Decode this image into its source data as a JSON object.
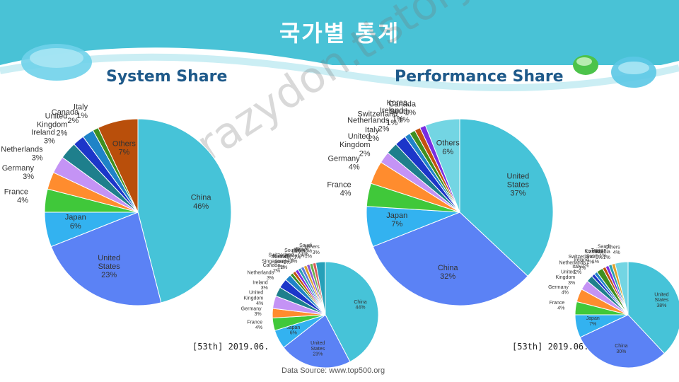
{
  "page": {
    "title": "국가별 통계",
    "source": "Data Source: www.top500.org",
    "watermark": "http://crazydon.tistory.com"
  },
  "chart_data": [
    {
      "id": "system-main",
      "type": "pie",
      "title": "System Share",
      "categories": [
        "China",
        "United States",
        "Japan",
        "France",
        "Germany",
        "Netherlands",
        "Ireland",
        "United Kingdom",
        "Canada",
        "Italy",
        "Others"
      ],
      "values": [
        46,
        23,
        6,
        4,
        3,
        3,
        3,
        2,
        2,
        1,
        7
      ],
      "labels": [
        "46%",
        "23%",
        "6%",
        "4%",
        "3%",
        "3%",
        "3%",
        "2%",
        "2%",
        "1%",
        "7%"
      ],
      "colors": [
        "#46c3d8",
        "#5b82f5",
        "#33b2f0",
        "#40c83a",
        "#ff8c2e",
        "#c493f5",
        "#1e7f8c",
        "#1c36c9",
        "#1f83c7",
        "#3f8f1f",
        "#b94f0b"
      ]
    },
    {
      "id": "performance-main",
      "type": "pie",
      "title": "Performance Share",
      "categories": [
        "United States",
        "China",
        "Japan",
        "France",
        "Germany",
        "United Kingdom",
        "Italy",
        "Netherlands",
        "Switzerland",
        "Ireland",
        "Korea, South",
        "Canada",
        "Others"
      ],
      "values": [
        37,
        32,
        7,
        4,
        4,
        2,
        2,
        2,
        1,
        1,
        1,
        1,
        6
      ],
      "labels": [
        "37%",
        "32%",
        "7%",
        "4%",
        "4%",
        "2%",
        "2%",
        "2%",
        "1%",
        "1%",
        "1%",
        "1%",
        "6%"
      ],
      "colors": [
        "#46c3d8",
        "#5b82f5",
        "#33b2f0",
        "#40c83a",
        "#ff8c2e",
        "#c493f5",
        "#1e7f8c",
        "#1c36c9",
        "#1f83c7",
        "#3f8f1f",
        "#c4520d",
        "#7a2de0",
        "#73d5e3"
      ]
    },
    {
      "id": "system-prev",
      "type": "pie",
      "caption": "[53th] 2019.06.",
      "categories": [
        "China",
        "United States",
        "Japan",
        "France",
        "Germany",
        "United Kingdom",
        "Ireland",
        "Netherlands",
        "Canada",
        "Singapore",
        "Korea, South",
        "Australia",
        "Switzerland",
        "South Africa",
        "Italy",
        "India",
        "Brazil",
        "Saudi Arabia",
        "Others"
      ],
      "values": [
        44,
        23,
        6,
        4,
        3,
        4,
        3,
        3,
        2,
        1,
        1,
        1,
        1,
        1,
        1,
        1,
        1,
        1,
        3
      ],
      "labels": [
        "44%",
        "23%",
        "6%",
        "4%",
        "3%",
        "4%",
        "3%",
        "3%",
        "2%",
        "1%",
        "1%",
        "1%",
        "1%",
        "1%",
        "1%",
        "1%",
        "1%",
        "1%",
        "3%"
      ],
      "colors": [
        "#46c3d8",
        "#5b82f5",
        "#33b2f0",
        "#40c83a",
        "#ff8c2e",
        "#c493f5",
        "#1e7f8c",
        "#1c36c9",
        "#1f83c7",
        "#3f8f1f",
        "#c4520d",
        "#7a2de0",
        "#2b9fb0",
        "#5e7bd8",
        "#e0a12a",
        "#8a56d0",
        "#6ab04c",
        "#d85a5a",
        "#26a0b8"
      ]
    },
    {
      "id": "performance-prev",
      "type": "pie",
      "caption": "[53th] 2019.06.",
      "categories": [
        "United States",
        "China",
        "Japan",
        "France",
        "Germany",
        "United Kingdom",
        "Italy",
        "Netherlands",
        "Ireland",
        "Switzerland",
        "Korea, South",
        "Canada",
        "Taiwan",
        "Saudi Arabia",
        "Others"
      ],
      "values": [
        38,
        30,
        7,
        4,
        4,
        3,
        2,
        1,
        1,
        2,
        1,
        1,
        1,
        1,
        4
      ],
      "labels": [
        "38%",
        "30%",
        "7%",
        "4%",
        "4%",
        "3%",
        "2%",
        "1%",
        "1%",
        "2%",
        "1%",
        "1%",
        "1%",
        "1%",
        "4%"
      ],
      "colors": [
        "#46c3d8",
        "#5b82f5",
        "#33b2f0",
        "#40c83a",
        "#ff8c2e",
        "#c493f5",
        "#1e7f8c",
        "#1c36c9",
        "#1f83c7",
        "#3f8f1f",
        "#c4520d",
        "#7a2de0",
        "#2b9fb0",
        "#e0a12a",
        "#73d5e3"
      ]
    }
  ]
}
